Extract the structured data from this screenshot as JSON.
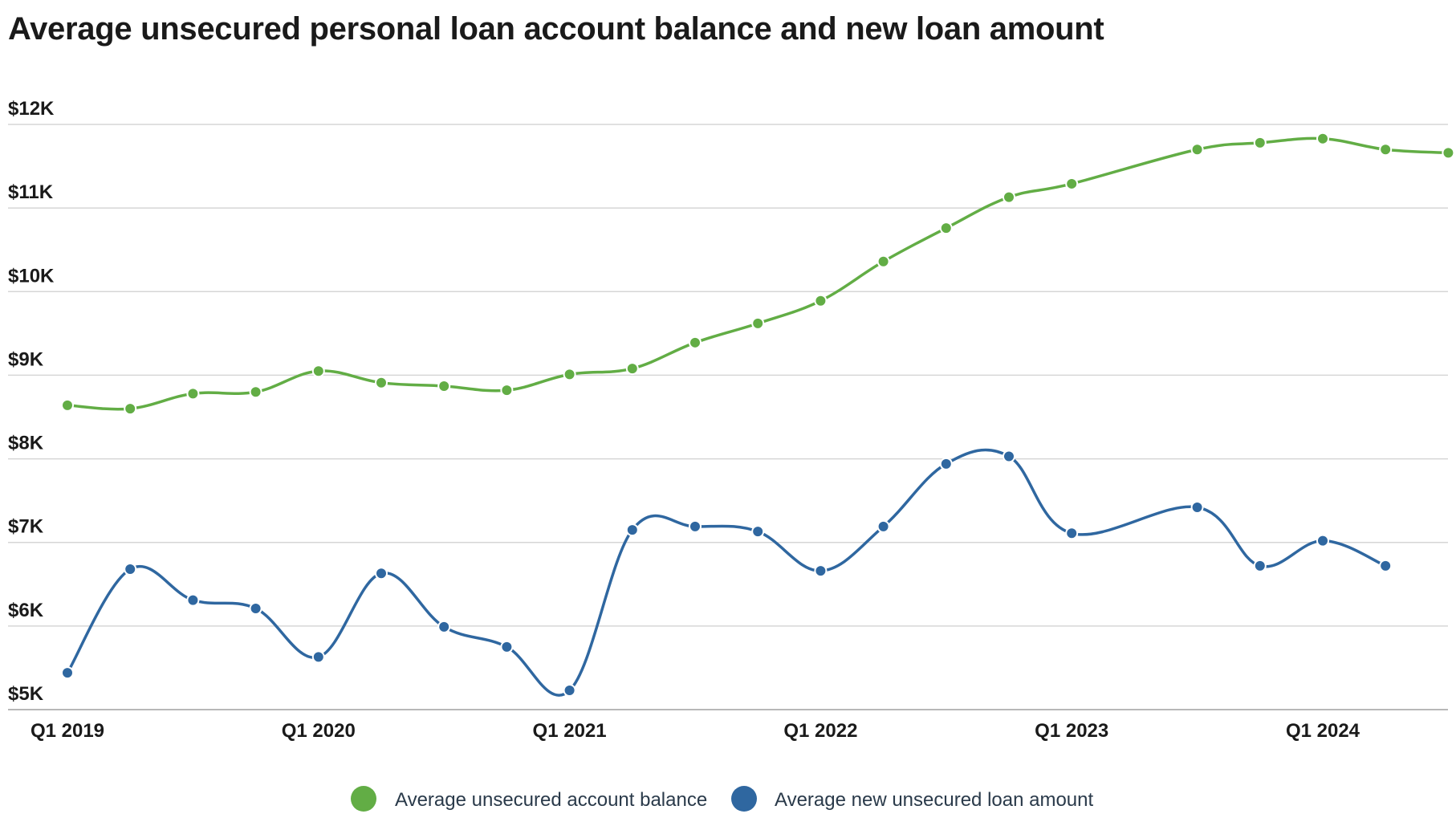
{
  "chart_data": {
    "type": "line",
    "title": "Average unsecured personal loan account balance and new loan amount",
    "xlabel": "",
    "ylabel": "",
    "x": [
      "Q1 2019",
      "Q2 2019",
      "Q3 2019",
      "Q4 2019",
      "Q1 2020",
      "Q2 2020",
      "Q3 2020",
      "Q4 2020",
      "Q1 2021",
      "Q2 2021",
      "Q3 2021",
      "Q4 2021",
      "Q1 2022",
      "Q2 2022",
      "Q3 2022",
      "Q4 2022",
      "Q1 2023",
      "Q2 2023",
      "Q3 2023",
      "Q4 2023",
      "Q1 2024",
      "Q2 2024",
      "Q3 2024"
    ],
    "x_tick_labels": [
      "Q1 2019",
      "Q1 2020",
      "Q1 2021",
      "Q1 2022",
      "Q1 2023",
      "Q1 2024"
    ],
    "y_tick_values": [
      5000,
      6000,
      7000,
      8000,
      9000,
      10000,
      11000,
      12000
    ],
    "y_tick_labels": [
      "$5K",
      "$6K",
      "$7K",
      "$8K",
      "$9K",
      "$10K",
      "$11K",
      "$12K"
    ],
    "ylim": [
      5000,
      12000
    ],
    "grid": true,
    "legend_position": "bottom",
    "series": [
      {
        "name": "Average unsecured account balance",
        "color": "#62ad45",
        "values": [
          8640,
          8600,
          8780,
          8800,
          9050,
          8910,
          8870,
          8820,
          9010,
          9080,
          9390,
          9620,
          9890,
          10360,
          10760,
          11130,
          11290,
          null,
          11700,
          11780,
          11830,
          11700,
          11660
        ]
      },
      {
        "name": "Average new unsecured loan amount",
        "color": "#2f67a0",
        "values": [
          5440,
          6680,
          6310,
          6210,
          5630,
          6630,
          5990,
          5750,
          5230,
          7150,
          7190,
          7130,
          6660,
          7190,
          7940,
          8030,
          7110,
          null,
          7420,
          6720,
          7020,
          6720,
          null
        ]
      }
    ]
  }
}
